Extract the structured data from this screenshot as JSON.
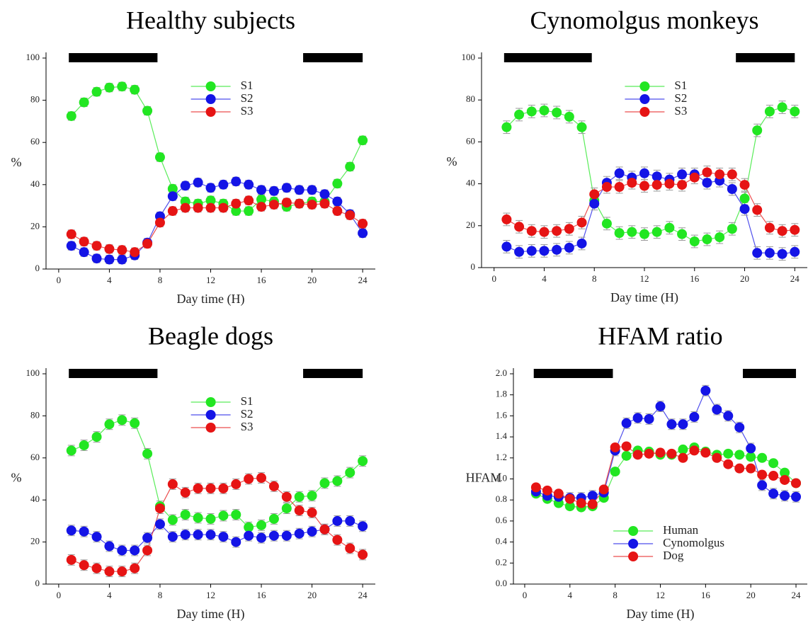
{
  "chart_data": [
    {
      "type": "line",
      "title": "Healthy subjects",
      "xlabel": "Day time (H)",
      "ylabel": "%",
      "x": [
        1,
        2,
        3,
        4,
        5,
        6,
        7,
        8,
        9,
        10,
        11,
        12,
        13,
        14,
        15,
        16,
        17,
        18,
        19,
        20,
        21,
        22,
        23,
        24
      ],
      "xlim": [
        -1,
        25
      ],
      "xticks": [
        0,
        4,
        8,
        12,
        16,
        20,
        24
      ],
      "ylim": [
        0,
        100
      ],
      "yticks": [
        0,
        20,
        40,
        60,
        80,
        100
      ],
      "legend": "upper center",
      "dark_periods": [
        [
          0.8,
          7.8
        ],
        [
          19.3,
          24
        ]
      ],
      "series": [
        {
          "name": "S1",
          "color": "#22e622",
          "error": 2,
          "values": [
            72.5,
            79,
            84,
            86,
            86.5,
            85,
            75,
            53,
            38,
            32,
            31,
            32.5,
            31,
            27.5,
            27.5,
            33,
            32,
            29.5,
            31,
            32,
            32,
            40.5,
            48.5,
            61
          ]
        },
        {
          "name": "S2",
          "color": "#1414e6",
          "error": 2,
          "values": [
            11,
            8,
            5,
            4.5,
            4.5,
            6.5,
            12.5,
            25,
            34.5,
            39.5,
            41,
            38.5,
            40,
            41.5,
            40,
            37.5,
            37,
            38.5,
            37.5,
            37.5,
            35.5,
            32,
            26,
            17
          ]
        },
        {
          "name": "S3",
          "color": "#e61414",
          "error": 2,
          "values": [
            16.5,
            13,
            11,
            9.5,
            9,
            8,
            12,
            22,
            27.5,
            29,
            29,
            29,
            29,
            31,
            32.5,
            29.5,
            30.5,
            31.5,
            31,
            30.5,
            31,
            27.5,
            25.5,
            21.5
          ]
        }
      ]
    },
    {
      "type": "line",
      "title": "Cynomolgus monkeys",
      "xlabel": "Day time (H)",
      "ylabel": "%",
      "x": [
        1,
        2,
        3,
        4,
        5,
        6,
        7,
        8,
        9,
        10,
        11,
        12,
        13,
        14,
        15,
        16,
        17,
        18,
        19,
        20,
        21,
        22,
        23,
        24
      ],
      "xlim": [
        -1,
        25
      ],
      "xticks": [
        0,
        4,
        8,
        12,
        16,
        20,
        24
      ],
      "ylim": [
        0,
        100
      ],
      "yticks": [
        0,
        20,
        40,
        60,
        80,
        100
      ],
      "legend": "upper center",
      "dark_periods": [
        [
          0.8,
          7.8
        ],
        [
          19.3,
          24
        ]
      ],
      "series": [
        {
          "name": "S1",
          "color": "#22e622",
          "error": 3,
          "values": [
            67,
            73,
            74.5,
            75,
            74,
            72,
            67,
            32,
            21,
            16.5,
            17,
            16,
            17,
            19,
            16,
            12.5,
            13.5,
            14.5,
            18.5,
            33,
            65.5,
            74.5,
            76.5,
            74.5
          ]
        },
        {
          "name": "S2",
          "color": "#1414e6",
          "error": 3,
          "values": [
            10,
            7.5,
            8,
            8,
            8.5,
            9.5,
            11.5,
            30.5,
            40.5,
            45,
            43,
            45,
            43.5,
            42,
            44.5,
            44.5,
            40.5,
            41.5,
            37.5,
            28,
            7,
            7,
            6.5,
            7.5
          ]
        },
        {
          "name": "S3",
          "color": "#e61414",
          "error": 3,
          "values": [
            23,
            19.5,
            17.5,
            17,
            17.5,
            18.5,
            21.5,
            35,
            38.5,
            38.5,
            40.5,
            39,
            39.5,
            40,
            39.5,
            43,
            45.5,
            44.5,
            44.5,
            39.5,
            27.5,
            19,
            17.5,
            18
          ]
        }
      ]
    },
    {
      "type": "line",
      "title": "Beagle dogs",
      "xlabel": "Day time (H)",
      "ylabel": "%",
      "x": [
        1,
        2,
        3,
        4,
        5,
        6,
        7,
        8,
        9,
        10,
        11,
        12,
        13,
        14,
        15,
        16,
        17,
        18,
        19,
        20,
        21,
        22,
        23,
        24
      ],
      "xlim": [
        -1,
        25
      ],
      "xticks": [
        0,
        4,
        8,
        12,
        16,
        20,
        24
      ],
      "ylim": [
        0,
        100
      ],
      "yticks": [
        0,
        20,
        40,
        60,
        80,
        100
      ],
      "legend": "upper center",
      "dark_periods": [
        [
          0.8,
          7.8
        ],
        [
          19.3,
          24
        ]
      ],
      "series": [
        {
          "name": "S1",
          "color": "#22e622",
          "error": 2.5,
          "values": [
            63.5,
            66,
            70,
            76,
            78,
            76.5,
            62,
            37,
            30.5,
            33,
            31.5,
            31,
            32.5,
            33,
            27,
            28,
            31,
            36,
            41.5,
            42,
            48,
            49,
            53,
            58.5
          ]
        },
        {
          "name": "S2",
          "color": "#1414e6",
          "error": 2.5,
          "values": [
            25.5,
            25,
            22.5,
            18,
            16,
            16,
            22,
            28.5,
            22.5,
            23.5,
            23.5,
            23.5,
            22.5,
            20,
            23,
            22,
            23,
            23,
            24,
            25,
            26,
            30,
            30,
            27.5
          ]
        },
        {
          "name": "S3",
          "color": "#e61414",
          "error": 2.5,
          "values": [
            11.5,
            9,
            7.5,
            6,
            6,
            7.5,
            16,
            36,
            47.5,
            43.5,
            45.5,
            45.5,
            45.5,
            47.5,
            50,
            50.5,
            46.5,
            41.5,
            35,
            34,
            26,
            21,
            17,
            14
          ]
        }
      ]
    },
    {
      "type": "line",
      "title": "HFAM ratio",
      "xlabel": "Day time (H)",
      "ylabel": "HFAM",
      "x": [
        1,
        2,
        3,
        4,
        5,
        6,
        7,
        8,
        9,
        10,
        11,
        12,
        13,
        14,
        15,
        16,
        17,
        18,
        19,
        20,
        21,
        22,
        23,
        24
      ],
      "xlim": [
        -1,
        25
      ],
      "xticks": [
        0,
        4,
        8,
        12,
        16,
        20,
        24
      ],
      "ylim": [
        0,
        2
      ],
      "yticks": [
        {
          "value": 0,
          "label": "0.0"
        },
        0.2,
        0.4,
        0.6,
        0.8,
        {
          "value": 1,
          "label": "1.0"
        },
        1.2,
        1.4,
        1.6,
        1.8,
        {
          "value": 2,
          "label": "2.0"
        }
      ],
      "legend": "lower center",
      "dark_periods": [
        [
          0.8,
          7.8
        ],
        [
          19.3,
          24
        ]
      ],
      "series": [
        {
          "name": "Human",
          "color": "#22e622",
          "error": 0.03,
          "values": [
            0.86,
            0.81,
            0.77,
            0.74,
            0.73,
            0.74,
            0.82,
            1.07,
            1.22,
            1.27,
            1.26,
            1.23,
            1.23,
            1.28,
            1.3,
            1.26,
            1.23,
            1.24,
            1.23,
            1.21,
            1.2,
            1.15,
            1.06,
            0.96
          ]
        },
        {
          "name": "Cynomolgus",
          "color": "#1414e6",
          "error": 0.05,
          "values": [
            0.88,
            0.84,
            0.83,
            0.82,
            0.82,
            0.84,
            0.87,
            1.27,
            1.53,
            1.58,
            1.57,
            1.69,
            1.52,
            1.52,
            1.59,
            1.84,
            1.66,
            1.6,
            1.49,
            1.29,
            0.94,
            0.86,
            0.84,
            0.83
          ]
        },
        {
          "name": "Dog",
          "color": "#e61414",
          "error": 0.03,
          "values": [
            0.92,
            0.89,
            0.86,
            0.81,
            0.77,
            0.76,
            0.9,
            1.3,
            1.31,
            1.23,
            1.24,
            1.25,
            1.24,
            1.2,
            1.27,
            1.25,
            1.2,
            1.14,
            1.1,
            1.1,
            1.04,
            1.03,
            0.99,
            0.96
          ]
        }
      ]
    }
  ]
}
